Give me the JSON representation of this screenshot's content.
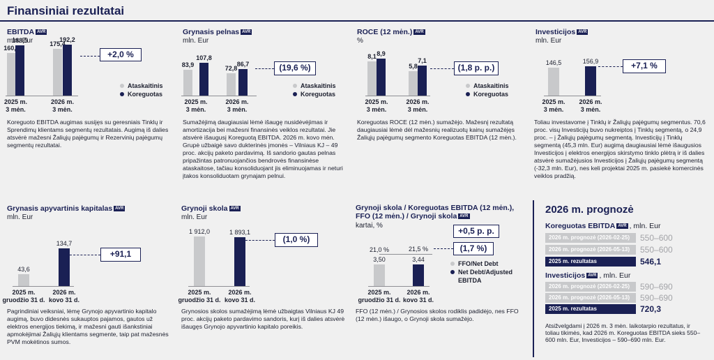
{
  "page_title": "Finansiniai rezultatai",
  "avr_badge": "AVR",
  "colors": {
    "navy": "#1a2054",
    "grey": "#c8c9cb"
  },
  "panels": {
    "ebitda": {
      "title": "EBITDA",
      "unit": "mln. Eur",
      "callout": "+2,0 %",
      "legend": [
        "Ataskaitinis",
        "Koreguotas"
      ],
      "desc": "Koreguoto EBITDA augimas susijęs su geresniais Tinklų ir Sprendimų klientams segmentų rezultatais. Augimą iš dalies atsvėrė mažesni Žaliųjų pajėgumų ir Rezervinių pajėgumų segmentų rezultatai."
    },
    "gross_profit": {
      "title": "Grynasis pelnas",
      "unit": "mln. Eur",
      "callout": "(19,6 %)",
      "legend": [
        "Ataskaitinis",
        "Koreguotas"
      ],
      "desc": "Sumažėjimą daugiausiai lėmė išaugę nusidėvėjimas ir amortizacija bei mažesni finansinės veiklos rezultatai. Jie atsvėrė išaugusį Koreguotą EBITDA. 2026 m. kovo mėn. Grupė užbaigė savo dukterinės įmonės – Vilniaus KJ – 49 proc. akcijų paketo pardavimą. Iš sandorio gautas pelnas pripažintas patronuojančios bendrovės finansinėse ataskaitose, tačiau konsoliduojant jis eliminuojamas ir neturi įtakos konsoliduotam grynajam pelnui."
    },
    "roce": {
      "title": "ROCE (12 mėn.)",
      "unit": "%",
      "callout": "(1,8 p. p.)",
      "legend": [
        "Ataskaitinis",
        "Koreguotas"
      ],
      "desc": "Koreguotas ROCE (12 mėn.) sumažėjo. Mažesnį rezultatą daugiausiai lėmė dėl mažesnių realizuotų kainų sumažėjęs Žaliųjų pajėgumų segmento Koreguotas EBITDA (12 mėn.)."
    },
    "investments": {
      "title": "Investicijos",
      "unit": "mln. Eur",
      "callout": "+7,1 %",
      "desc": "Toliau investavome į Tinklų ir Žaliųjų pajėgumų segmentus. 70,6 proc. visų Investicijų buvo nukreiptos į Tinklų segmentą, o 24,9 proc. – į Žaliųjų pajėgumų segmentą. Investicijų į Tinklų segmentą (45,3 mln. Eur) augimą daugiausiai lėmė išaugusios Investicijos į elektros energijos skirstymo tinklo plėtrą ir iš dalies atsvėrė sumažėjusios Investicijos į Žaliųjų pajėgumų segmentą (-32,3 mln. Eur), nes keli projektai 2025 m. pasiekė komercinės veiklos pradžią."
    },
    "working_capital": {
      "title": "Grynasis apyvartinis kapitalas",
      "unit": "mln. Eur",
      "callout": "+91,1",
      "desc": "Pagrindiniai veiksniai, lėmę Grynojo apyvartinio kapitalo augimą, buvo didesnės sukauptos pajamos, gautos už elektros energijos tiekimą, ir mažesni gauti išankstiniai apmokėjimai Žaliųjų klientams segmente, taip pat mažesnės PVM mokėtinos sumos."
    },
    "net_debt": {
      "title": "Grynoji skola",
      "unit": "mln. Eur",
      "callout": "(1,0 %)",
      "desc": "Grynosios skolos sumažėjimą lėmė užbaigtas Vilniaus KJ 49 proc. akcijų paketo pardavimo sandoris, kurį iš dalies atsvėrė išaugęs Grynojo apyvartinio kapitalo poreikis."
    },
    "ratios": {
      "title_line1": "Grynoji skola / Koreguotas EBITDA (12 mėn.),",
      "title_line2": "FFO (12 mėn.) / Grynoji skola",
      "unit": "kartai, %",
      "callout1": "+0,5 p. p.",
      "callout2": "(1,7 %)",
      "legend": [
        "FFO/Net Debt",
        "Net Debt/Adjusted",
        "EBITDA"
      ],
      "desc": "FFO (12 mėn.) / Grynosios skolos rodiklis padidėjo, nes FFO (12 mėn.) išaugo, o Grynoji skola sumažėjo."
    }
  },
  "forecast": {
    "title": "2026 m. prognozė",
    "unit_text": ", mln. Eur",
    "ebitda_title": "Koreguotas EBITDA",
    "ebitda_rows": [
      {
        "label": "2026 m. prognozė (2026-02-25)",
        "value": "550–600"
      },
      {
        "label": "2026 m. prognozė (2026-05-13)",
        "value": "550–600"
      },
      {
        "label": "2025 m. rezultatas",
        "value": "546,1"
      }
    ],
    "inv_title": "Investicijos",
    "inv_rows": [
      {
        "label": "2026 m. prognozė (2026-02-25)",
        "value": "590–690"
      },
      {
        "label": "2026 m. prognozė (2026-05-13)",
        "value": "590–690"
      },
      {
        "label": "2025 m. rezultatas",
        "value": "720,3"
      }
    ],
    "note": "Atsižvelgdami į 2026 m. 3 mėn. laikotarpio rezultatus, ir toliau tikimės, kad 2026 m. Koreguotas EBITDA sieks 550–600 mln. Eur, Investicijos – 590–690 mln. Eur."
  },
  "chart_data": [
    {
      "id": "ebitda",
      "type": "bar",
      "categories": [
        "2025 m. 3 mėn.",
        "2026 m. 3 mėn."
      ],
      "series": [
        {
          "name": "Ataskaitinis",
          "values": [
            160.1,
            175.4
          ],
          "labels": [
            "160,1",
            "175,4"
          ]
        },
        {
          "name": "Koreguotas",
          "values": [
            188.5,
            192.2
          ],
          "labels": [
            "188,5",
            "192,2"
          ]
        }
      ]
    },
    {
      "id": "gross_profit",
      "type": "bar",
      "categories": [
        "2025 m. 3 mėn.",
        "2026 m. 3 mėn."
      ],
      "series": [
        {
          "name": "Ataskaitinis",
          "values": [
            83.9,
            72.8
          ],
          "labels": [
            "83,9",
            "72,8"
          ]
        },
        {
          "name": "Koreguotas",
          "values": [
            107.8,
            86.7
          ],
          "labels": [
            "107,8",
            "86,7"
          ]
        }
      ]
    },
    {
      "id": "roce",
      "type": "bar",
      "categories": [
        "2025 m. 3 mėn.",
        "2026 m. 3 mėn."
      ],
      "series": [
        {
          "name": "Ataskaitinis",
          "values": [
            8.1,
            5.8
          ],
          "labels": [
            "8,1",
            "5,8"
          ]
        },
        {
          "name": "Koreguotas",
          "values": [
            8.9,
            7.1
          ],
          "labels": [
            "8,9",
            "7,1"
          ]
        }
      ]
    },
    {
      "id": "investments",
      "type": "bar",
      "categories": [
        "2025 m. 3 mėn.",
        "2026 m. 3 mėn."
      ],
      "values": [
        146.5,
        156.9
      ],
      "labels": [
        "146,5",
        "156,9"
      ]
    },
    {
      "id": "working_capital",
      "type": "bar",
      "categories": [
        "2025 m. gruodžio 31 d.",
        "2026 m. kovo 31 d."
      ],
      "values": [
        43.6,
        134.7
      ],
      "labels": [
        "43,6",
        "134,7"
      ]
    },
    {
      "id": "net_debt",
      "type": "bar",
      "categories": [
        "2025 m. gruodžio 31 d.",
        "2026 m. kovo 31 d."
      ],
      "values": [
        1912.0,
        1893.1
      ],
      "labels": [
        "1 912,0",
        "1 893,1"
      ]
    },
    {
      "id": "ratios",
      "type": "bar",
      "categories": [
        "2025 m. gruodžio 31 d.",
        "2026 m. kovo 31 d."
      ],
      "series": [
        {
          "name": "Net Debt/Adjusted EBITDA",
          "values": [
            3.5,
            3.44
          ],
          "labels": [
            "3,50",
            "3,44"
          ]
        },
        {
          "name": "FFO/Net Debt",
          "values": [
            21.0,
            21.5
          ],
          "labels": [
            "21,0 %",
            "21,5 %"
          ]
        }
      ]
    }
  ]
}
